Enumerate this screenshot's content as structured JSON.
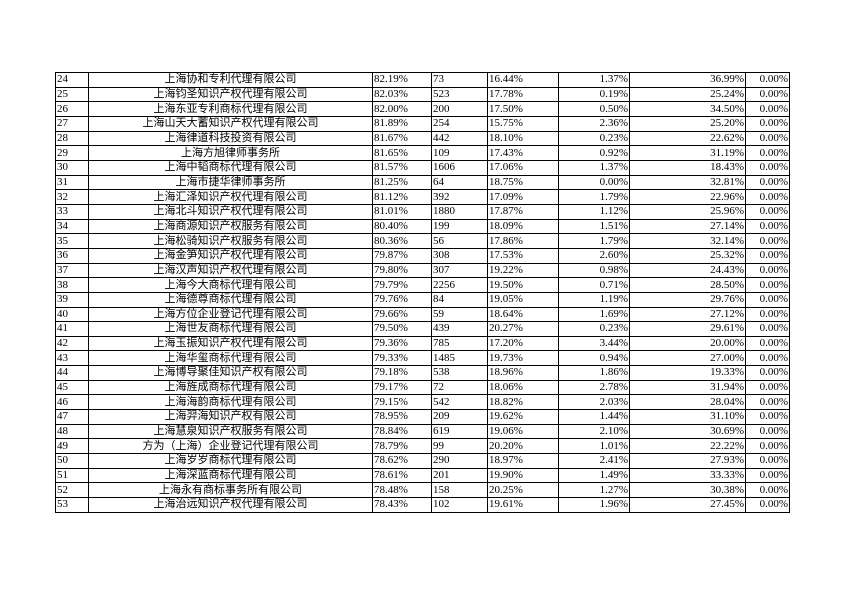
{
  "rows": [
    [
      "24",
      "上海协和专利代理有限公司",
      "82.19%",
      "73",
      "16.44%",
      "1.37%",
      "36.99%",
      "0.00%"
    ],
    [
      "25",
      "上海钧圣知识产权代理有限公司",
      "82.03%",
      "523",
      "17.78%",
      "0.19%",
      "25.24%",
      "0.00%"
    ],
    [
      "26",
      "上海东亚专利商标代理有限公司",
      "82.00%",
      "200",
      "17.50%",
      "0.50%",
      "34.50%",
      "0.00%"
    ],
    [
      "27",
      "上海山天大蓄知识产权代理有限公司",
      "81.89%",
      "254",
      "15.75%",
      "2.36%",
      "25.20%",
      "0.00%"
    ],
    [
      "28",
      "上海律道科技投资有限公司",
      "81.67%",
      "442",
      "18.10%",
      "0.23%",
      "22.62%",
      "0.00%"
    ],
    [
      "29",
      "上海方旭律师事务所",
      "81.65%",
      "109",
      "17.43%",
      "0.92%",
      "31.19%",
      "0.00%"
    ],
    [
      "30",
      "上海中韬商标代理有限公司",
      "81.57%",
      "1606",
      "17.06%",
      "1.37%",
      "18.43%",
      "0.00%"
    ],
    [
      "31",
      "上海市捷华律师事务所",
      "81.25%",
      "64",
      "18.75%",
      "0.00%",
      "32.81%",
      "0.00%"
    ],
    [
      "32",
      "上海汇泽知识产权代理有限公司",
      "81.12%",
      "392",
      "17.09%",
      "1.79%",
      "22.96%",
      "0.00%"
    ],
    [
      "33",
      "上海北斗知识产权代理有限公司",
      "81.01%",
      "1880",
      "17.87%",
      "1.12%",
      "25.96%",
      "0.00%"
    ],
    [
      "34",
      "上海商源知识产权服务有限公司",
      "80.40%",
      "199",
      "18.09%",
      "1.51%",
      "27.14%",
      "0.00%"
    ],
    [
      "35",
      "上海松骑知识产权服务有限公司",
      "80.36%",
      "56",
      "17.86%",
      "1.79%",
      "32.14%",
      "0.00%"
    ],
    [
      "36",
      "上海金笋知识产权代理有限公司",
      "79.87%",
      "308",
      "17.53%",
      "2.60%",
      "25.32%",
      "0.00%"
    ],
    [
      "37",
      "上海汉声知识产权代理有限公司",
      "79.80%",
      "307",
      "19.22%",
      "0.98%",
      "24.43%",
      "0.00%"
    ],
    [
      "38",
      "上海今大商标代理有限公司",
      "79.79%",
      "2256",
      "19.50%",
      "0.71%",
      "28.50%",
      "0.00%"
    ],
    [
      "39",
      "上海德尊商标代理有限公司",
      "79.76%",
      "84",
      "19.05%",
      "1.19%",
      "29.76%",
      "0.00%"
    ],
    [
      "40",
      "上海方位企业登记代理有限公司",
      "79.66%",
      "59",
      "18.64%",
      "1.69%",
      "27.12%",
      "0.00%"
    ],
    [
      "41",
      "上海世友商标代理有限公司",
      "79.50%",
      "439",
      "20.27%",
      "0.23%",
      "29.61%",
      "0.00%"
    ],
    [
      "42",
      "上海玉振知识产权代理有限公司",
      "79.36%",
      "785",
      "17.20%",
      "3.44%",
      "20.00%",
      "0.00%"
    ],
    [
      "43",
      "上海华玺商标代理有限公司",
      "79.33%",
      "1485",
      "19.73%",
      "0.94%",
      "27.00%",
      "0.00%"
    ],
    [
      "44",
      "上海博导聚佳知识产权有限公司",
      "79.18%",
      "538",
      "18.96%",
      "1.86%",
      "19.33%",
      "0.00%"
    ],
    [
      "45",
      "上海旌成商标代理有限公司",
      "79.17%",
      "72",
      "18.06%",
      "2.78%",
      "31.94%",
      "0.00%"
    ],
    [
      "46",
      "上海海韵商标代理有限公司",
      "79.15%",
      "542",
      "18.82%",
      "2.03%",
      "28.04%",
      "0.00%"
    ],
    [
      "47",
      "上海羿海知识产权有限公司",
      "78.95%",
      "209",
      "19.62%",
      "1.44%",
      "31.10%",
      "0.00%"
    ],
    [
      "48",
      "上海慧泉知识产权服务有限公司",
      "78.84%",
      "619",
      "19.06%",
      "2.10%",
      "30.69%",
      "0.00%"
    ],
    [
      "49",
      "方为（上海）企业登记代理有限公司",
      "78.79%",
      "99",
      "20.20%",
      "1.01%",
      "22.22%",
      "0.00%"
    ],
    [
      "50",
      "上海岁岁商标代理有限公司",
      "78.62%",
      "290",
      "18.97%",
      "2.41%",
      "27.93%",
      "0.00%"
    ],
    [
      "51",
      "上海深蓝商标代理有限公司",
      "78.61%",
      "201",
      "19.90%",
      "1.49%",
      "33.33%",
      "0.00%"
    ],
    [
      "52",
      "上海永有商标事务所有限公司",
      "78.48%",
      "158",
      "20.25%",
      "1.27%",
      "30.38%",
      "0.00%"
    ],
    [
      "53",
      "上海治远知识产权代理有限公司",
      "78.43%",
      "102",
      "19.61%",
      "1.96%",
      "27.45%",
      "0.00%"
    ]
  ]
}
